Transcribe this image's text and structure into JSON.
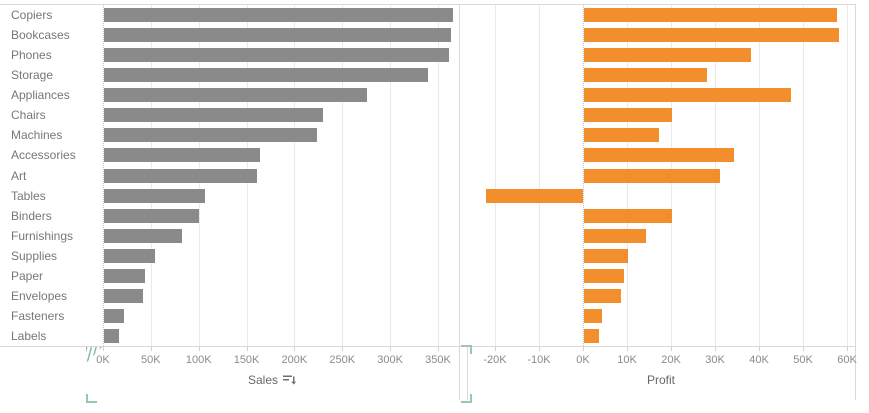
{
  "chart_data": {
    "type": "bar",
    "orientation": "horizontal",
    "title": "",
    "categories": [
      "Copiers",
      "Bookcases",
      "Phones",
      "Storage",
      "Appliances",
      "Chairs",
      "Machines",
      "Accessories",
      "Art",
      "Tables",
      "Binders",
      "Furnishings",
      "Supplies",
      "Paper",
      "Envelopes",
      "Fasteners",
      "Labels"
    ],
    "series": [
      {
        "name": "Sales",
        "unit": "K",
        "values": [
          365,
          363,
          360,
          339,
          275,
          229,
          223,
          163,
          160,
          106,
          99,
          81,
          53,
          43,
          41,
          21,
          16
        ]
      },
      {
        "name": "Profit",
        "unit": "K",
        "values": [
          57.5,
          58,
          38,
          28,
          47,
          20,
          17,
          34,
          31,
          -22,
          20,
          14,
          10,
          9,
          8.5,
          4,
          3.5
        ]
      }
    ],
    "axes": {
      "sales": {
        "title": "Sales",
        "sorted": "descending",
        "range_k": [
          0,
          372
        ],
        "grid": true,
        "ticks": [
          {
            "v": 0,
            "label": "0K"
          },
          {
            "v": 50,
            "label": "50K"
          },
          {
            "v": 100,
            "label": "100K"
          },
          {
            "v": 150,
            "label": "150K"
          },
          {
            "v": 200,
            "label": "200K"
          },
          {
            "v": 250,
            "label": "250K"
          },
          {
            "v": 300,
            "label": "300K"
          },
          {
            "v": 350,
            "label": "350K"
          }
        ]
      },
      "profit": {
        "title": "Profit",
        "range_k": [
          -26,
          62
        ],
        "grid": true,
        "ticks": [
          {
            "v": -20,
            "label": "-20K"
          },
          {
            "v": -10,
            "label": "-10K"
          },
          {
            "v": 0,
            "label": "0K"
          },
          {
            "v": 10,
            "label": "10K"
          },
          {
            "v": 20,
            "label": "20K"
          },
          {
            "v": 30,
            "label": "30K"
          },
          {
            "v": 40,
            "label": "40K"
          },
          {
            "v": 50,
            "label": "50K"
          },
          {
            "v": 60,
            "label": "60K"
          }
        ]
      }
    },
    "row_markers": [
      {
        "category": "Storage",
        "color": "blue"
      },
      {
        "category": "Chairs",
        "color": "blue"
      },
      {
        "category": "Machines",
        "color": "red"
      },
      {
        "category": "Tables",
        "color": "red"
      }
    ]
  },
  "colors": {
    "sales_bar": "#8a8a8a",
    "profit_bar": "#f28e2b",
    "marker_blue": "#1c1cd6",
    "marker_red": "#e15759",
    "selection_green": "#9cc6b4"
  },
  "labels": {
    "sales_axis_title": "Sales",
    "profit_axis_title": "Profit"
  }
}
